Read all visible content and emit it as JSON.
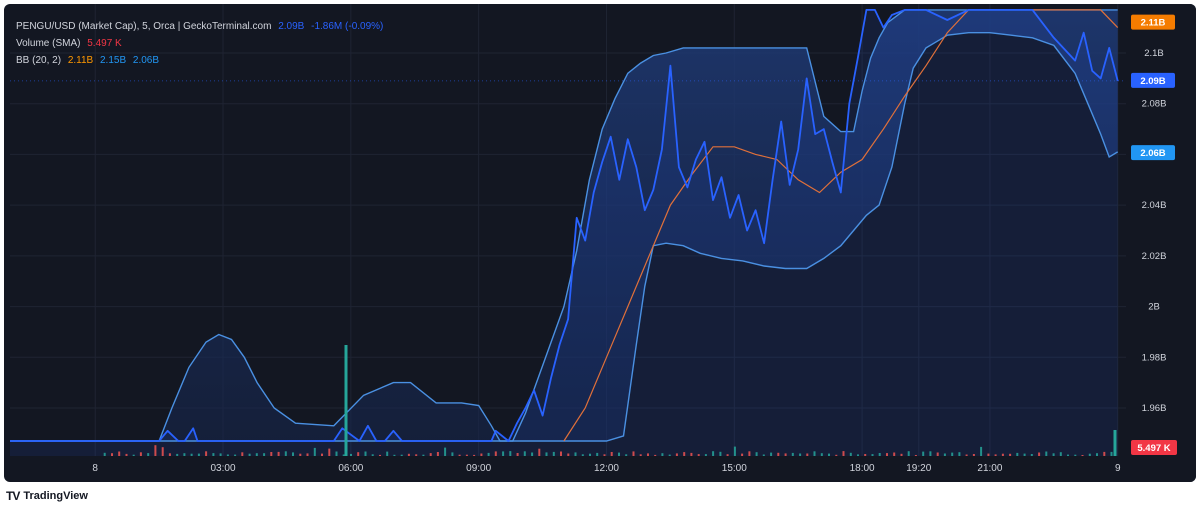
{
  "legend": {
    "title": "PENGU/USD (Market Cap), 5, Orca | GeckoTerminal.com",
    "price_value": "2.09B",
    "price_change": "-1.86M (-0.09%)",
    "volume_label": "Volume (SMA)",
    "volume_value": "5.497 K",
    "bb_label": "BB (20, 2)",
    "bb_basis": "2.11B",
    "bb_upper": "2.15B",
    "bb_lower": "2.06B"
  },
  "branding": {
    "logo": "TV",
    "name": "TradingView"
  },
  "colors": {
    "background": "#131722",
    "price_line": "#2962ff",
    "bb_band": "#4a90e2",
    "bb_basis": "#e0703a",
    "volume_up": "#26a69a",
    "volume_down": "#ef5350",
    "grid": "#1f2433",
    "axis_text": "#d1d4dc"
  },
  "chart_data": {
    "type": "line",
    "title": "PENGU/USD (Market Cap), 5, Orca | GeckoTerminal.com",
    "ylabel": "",
    "ylim": [
      1.947,
      2.117
    ],
    "y_ticks": [
      "2.1B",
      "2.08B",
      "2.06B",
      "2.04B",
      "2.02B",
      "2B",
      "1.98B",
      "1.96B"
    ],
    "y_tick_values": [
      2.1,
      2.08,
      2.06,
      2.04,
      2.02,
      2.0,
      1.98,
      1.96
    ],
    "x_ticks": [
      "8",
      "03:00",
      "06:00",
      "09:00",
      "12:00",
      "15:00",
      "18:00",
      "19:20",
      "21:00",
      "9"
    ],
    "x_tick_hours": [
      0.0,
      3.0,
      6.0,
      9.0,
      12.0,
      15.0,
      18.0,
      19.33,
      21.0,
      24.0
    ],
    "x_range_hours": [
      -2.0,
      24.1
    ],
    "series": [
      {
        "name": "PENGU/USD (Market Cap)",
        "x": [
          -2.0,
          1.5,
          1.7,
          1.95,
          2.1,
          2.3,
          2.4,
          3.5,
          5.6,
          5.8,
          6.2,
          6.4,
          6.6,
          6.8,
          7.0,
          7.2,
          8.9,
          9.3,
          9.4,
          9.7,
          9.9,
          10.1,
          10.3,
          10.5,
          10.7,
          10.9,
          11.1,
          11.3,
          11.5,
          11.7,
          11.9,
          12.1,
          12.3,
          12.5,
          12.7,
          12.9,
          13.1,
          13.3,
          13.5,
          13.7,
          13.9,
          14.1,
          14.3,
          14.5,
          14.7,
          14.9,
          15.1,
          15.3,
          15.5,
          15.7,
          15.9,
          16.1,
          16.3,
          16.5,
          16.7,
          16.9,
          17.1,
          17.3,
          17.5,
          17.7,
          17.9,
          18.1,
          18.3,
          18.5,
          18.7,
          19.0,
          19.5,
          20.0,
          20.5,
          21.0,
          21.5,
          22.0,
          22.5,
          23.0,
          23.2,
          23.4,
          23.6,
          23.8,
          24.0
        ],
        "y": [
          1.947,
          1.947,
          1.951,
          1.947,
          1.947,
          1.952,
          1.947,
          1.947,
          1.947,
          1.952,
          1.947,
          1.953,
          1.947,
          1.947,
          1.951,
          1.947,
          1.947,
          1.947,
          1.951,
          1.947,
          1.954,
          1.96,
          1.967,
          1.957,
          1.972,
          1.985,
          1.995,
          2.035,
          2.026,
          2.045,
          2.057,
          2.067,
          2.05,
          2.066,
          2.055,
          2.038,
          2.046,
          2.062,
          2.095,
          2.055,
          2.047,
          2.058,
          2.065,
          2.042,
          2.051,
          2.035,
          2.044,
          2.03,
          2.038,
          2.025,
          2.05,
          2.073,
          2.048,
          2.062,
          2.09,
          2.068,
          2.07,
          2.057,
          2.045,
          2.08,
          2.098,
          2.117,
          2.117,
          2.11,
          2.115,
          2.117,
          2.117,
          2.113,
          2.117,
          2.117,
          2.117,
          2.117,
          2.106,
          2.097,
          2.108,
          2.093,
          2.09,
          2.102,
          2.089
        ]
      },
      {
        "name": "BB (20, 2)",
        "x": [
          -2.0,
          1.5,
          1.8,
          2.2,
          2.6,
          2.9,
          3.2,
          3.5,
          3.8,
          4.2,
          4.7,
          5.6,
          6.3,
          7.0,
          7.4,
          8.0,
          8.6,
          9.0,
          9.3,
          9.5,
          9.8,
          10.1,
          10.4,
          10.7,
          11.0,
          11.3,
          11.6,
          11.9,
          12.2,
          12.5,
          12.8,
          13.1,
          13.4,
          13.8,
          14.2,
          14.7,
          15.2,
          15.7,
          16.2,
          16.7,
          17.1,
          17.5,
          17.8,
          18.0,
          18.2,
          18.4,
          18.6,
          19.0,
          19.5,
          20.0,
          20.5,
          21.0,
          21.5,
          22.0,
          22.5,
          23.0,
          23.4,
          23.8,
          24.0
        ],
        "y": [
          1.947,
          1.947,
          1.96,
          1.976,
          1.986,
          1.989,
          1.987,
          1.98,
          1.97,
          1.96,
          1.954,
          1.953,
          1.965,
          1.97,
          1.97,
          1.962,
          1.962,
          1.961,
          1.953,
          1.947,
          1.947,
          1.958,
          1.972,
          1.986,
          2.0,
          2.022,
          2.05,
          2.07,
          2.082,
          2.092,
          2.096,
          2.099,
          2.1,
          2.102,
          2.102,
          2.102,
          2.102,
          2.102,
          2.102,
          2.102,
          2.075,
          2.069,
          2.069,
          2.085,
          2.098,
          2.106,
          2.112,
          2.117,
          2.117,
          2.117,
          2.117,
          2.117,
          2.117,
          2.117,
          2.117,
          2.117,
          2.117,
          2.117,
          2.117
        ]
      },
      {
        "name": "BB (20, 2) lower",
        "x": [
          -2.0,
          12.0,
          12.4,
          12.7,
          12.9,
          13.1,
          13.4,
          13.8,
          14.2,
          14.7,
          15.2,
          15.7,
          16.2,
          16.7,
          17.1,
          17.5,
          17.8,
          18.1,
          18.4,
          18.7,
          19.0,
          19.2,
          19.5,
          19.8,
          20.0,
          20.5,
          21.0,
          21.5,
          22.0,
          22.5,
          23.0,
          23.3,
          23.6,
          23.8,
          24.0
        ],
        "y": [
          1.947,
          1.947,
          1.949,
          1.985,
          2.008,
          2.024,
          2.025,
          2.024,
          2.021,
          2.019,
          2.018,
          2.016,
          2.015,
          2.015,
          2.019,
          2.024,
          2.03,
          2.036,
          2.04,
          2.055,
          2.08,
          2.094,
          2.102,
          2.105,
          2.107,
          2.108,
          2.108,
          2.107,
          2.106,
          2.103,
          2.092,
          2.08,
          2.068,
          2.059,
          2.061
        ]
      },
      {
        "name": "BB basis",
        "x": [
          11.0,
          11.5,
          12.0,
          12.5,
          13.0,
          13.5,
          14.0,
          14.5,
          15.0,
          15.5,
          16.0,
          16.5,
          17.0,
          17.5,
          18.0,
          18.5,
          19.0,
          19.5,
          20.0,
          20.5,
          21.0,
          22.0,
          23.0,
          23.6,
          24.0
        ],
        "y": [
          1.947,
          1.96,
          1.98,
          2.0,
          2.02,
          2.04,
          2.052,
          2.063,
          2.063,
          2.06,
          2.058,
          2.05,
          2.045,
          2.053,
          2.058,
          2.07,
          2.083,
          2.095,
          2.108,
          2.117,
          2.117,
          2.117,
          2.117,
          2.117,
          2.11
        ]
      }
    ],
    "volume": {
      "name": "Volume (SMA)",
      "last": "5.497 K",
      "spike_hour": 5.85,
      "spike2_hour": 23.9
    },
    "price_labels": [
      "2.11B",
      "2.09B",
      "2.06B",
      "5.497 K"
    ],
    "grid": true,
    "legend_position": "top-left"
  }
}
